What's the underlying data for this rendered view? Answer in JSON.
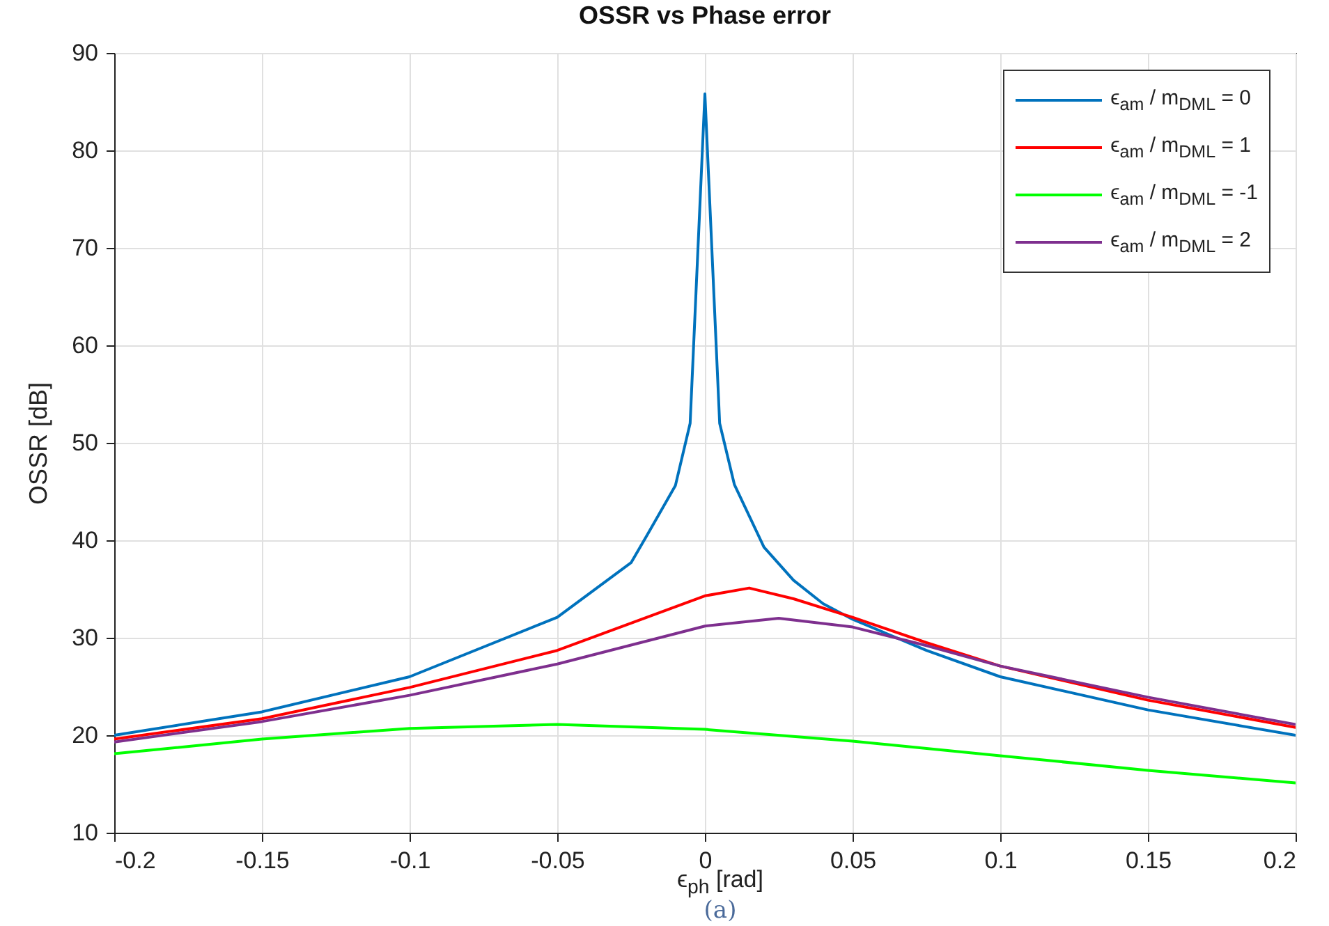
{
  "chart_data": {
    "type": "line",
    "title": "OSSR vs Phase error",
    "xlabel": "ϵ$_{ph}$ [rad]",
    "ylabel": "OSSR [dB]",
    "xlim": [
      -0.2,
      0.2
    ],
    "ylim": [
      10,
      90
    ],
    "xticks": [
      -0.2,
      -0.15,
      -0.1,
      -0.05,
      0,
      0.05,
      0.1,
      0.15,
      0.2
    ],
    "yticks": [
      10,
      20,
      30,
      40,
      50,
      60,
      70,
      80,
      90
    ],
    "grid": true,
    "legend": "top right",
    "line_style": "solid",
    "annotations": [
      "(a)"
    ],
    "series": [
      {
        "name": "ϵ$_{am}$ / m$_{DML}$ = 0",
        "color": "#0072bd",
        "x": [
          -0.2,
          -0.15,
          -0.1,
          -0.05,
          -0.025,
          -0.02,
          -0.01,
          -0.005,
          0,
          0.005,
          0.01,
          0.02,
          0.03,
          0.04,
          0.05,
          0.075,
          0.1,
          0.15,
          0.2
        ],
        "values": [
          20,
          22.4,
          26,
          32.1,
          37.7,
          40.3,
          45.6,
          52,
          85.8,
          52,
          45.7,
          39.3,
          35.9,
          33.5,
          31.9,
          28.7,
          26,
          22.6,
          20
        ]
      },
      {
        "name": "ϵ$_{am}$ / m$_{DML}$ = 1",
        "color": "#ff0000",
        "x": [
          -0.2,
          -0.15,
          -0.1,
          -0.05,
          0,
          0.015,
          0.03,
          0.05,
          0.075,
          0.1,
          0.15,
          0.2
        ],
        "values": [
          19.6,
          21.7,
          24.9,
          28.7,
          34.3,
          35.1,
          34,
          32.1,
          29.5,
          27.1,
          23.6,
          20.8
        ]
      },
      {
        "name": "ϵ$_{am}$ / m$_{DML}$ = -1",
        "color": "#00ff00",
        "x": [
          -0.2,
          -0.15,
          -0.1,
          -0.05,
          0,
          0.05,
          0.1,
          0.15,
          0.2
        ],
        "values": [
          18.1,
          19.6,
          20.7,
          21.1,
          20.6,
          19.4,
          17.9,
          16.4,
          15.1
        ]
      },
      {
        "name": "ϵ$_{am}$ / m$_{DML}$ = 2",
        "color": "#7e2f8e",
        "x": [
          -0.2,
          -0.15,
          -0.1,
          -0.05,
          0,
          0.025,
          0.05,
          0.075,
          0.1,
          0.15,
          0.2
        ],
        "values": [
          19.3,
          21.4,
          24.1,
          27.3,
          31.2,
          32,
          31.1,
          29.2,
          27.1,
          23.9,
          21.1
        ]
      }
    ]
  }
}
